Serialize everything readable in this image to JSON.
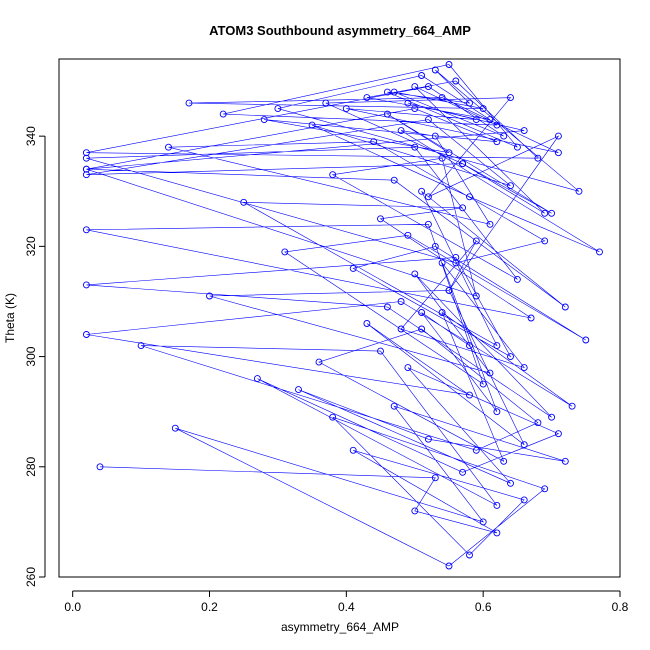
{
  "chart_data": {
    "type": "line",
    "title": "ATOM3 Southbound asymmetry_664_AMP",
    "xlabel": "asymmetry_664_AMP",
    "ylabel": "Theta (K)",
    "xlim": [
      -0.02,
      0.8
    ],
    "ylim": [
      260,
      354
    ],
    "x_ticks": [
      0.0,
      0.2,
      0.4,
      0.6,
      0.8
    ],
    "x_tick_labels": [
      "0.0",
      "0.2",
      "0.4",
      "0.6",
      "0.8"
    ],
    "y_ticks": [
      260,
      280,
      300,
      320,
      340
    ],
    "y_tick_labels": [
      "260",
      "280",
      "300",
      "320",
      "340"
    ],
    "grid": false,
    "legend": "none",
    "series_color": "#0000ff",
    "markers": "open-circle",
    "series": [
      {
        "x": [
          0.04,
          0.53,
          0.5,
          0.62,
          0.41,
          0.66,
          0.58,
          0.38,
          0.69,
          0.55,
          0.15,
          0.6,
          0.47,
          0.72,
          0.52,
          0.33,
          0.64,
          0.49,
          0.71,
          0.57,
          0.27,
          0.62,
          0.45,
          0.1,
          0.59,
          0.68,
          0.51,
          0.36,
          0.63,
          0.54,
          0.73,
          0.48,
          0.02,
          0.58,
          0.43,
          0.66,
          0.55,
          0.2,
          0.61,
          0.5,
          0.7,
          0.46,
          0.02,
          0.56,
          0.64,
          0.41,
          0.53,
          0.75,
          0.49,
          0.31,
          0.6,
          0.52,
          0.02,
          0.67,
          0.45,
          0.57,
          0.25,
          0.62,
          0.51,
          0.72,
          0.47,
          0.02,
          0.59,
          0.54,
          0.38,
          0.65,
          0.5,
          0.02,
          0.56,
          0.69,
          0.44,
          0.14,
          0.61,
          0.53,
          0.48,
          0.77,
          0.58,
          0.35,
          0.64,
          0.52,
          0.02,
          0.57,
          0.7,
          0.46,
          0.55,
          0.28,
          0.62,
          0.5,
          0.02,
          0.66,
          0.49,
          0.59,
          0.4,
          0.71,
          0.54,
          0.17,
          0.6,
          0.47,
          0.63,
          0.52,
          0.02,
          0.68,
          0.56,
          0.43,
          0.61,
          0.51,
          0.3,
          0.74,
          0.53,
          0.58,
          0.46,
          0.65,
          0.55,
          0.22,
          0.62,
          0.5,
          0.69,
          0.57,
          0.37,
          0.64,
          0.52,
          0.71,
          0.55,
          0.59,
          0.48,
          0.66,
          0.54,
          0.62,
          0.51,
          0.58
        ],
        "y": [
          280,
          278,
          272,
          268,
          283,
          274,
          264,
          289,
          276,
          262,
          287,
          270,
          291,
          281,
          285,
          294,
          277,
          298,
          286,
          279,
          296,
          273,
          301,
          302,
          283,
          288,
          305,
          299,
          281,
          308,
          291,
          310,
          304,
          293,
          306,
          284,
          312,
          311,
          297,
          315,
          289,
          309,
          313,
          318,
          300,
          316,
          320,
          303,
          322,
          319,
          295,
          324,
          323,
          307,
          325,
          327,
          328,
          302,
          330,
          309,
          332,
          334,
          311,
          336,
          333,
          314,
          338,
          336,
          317,
          321,
          339,
          338,
          324,
          340,
          341,
          319,
          329,
          342,
          331,
          343,
          333,
          335,
          326,
          344,
          337,
          343,
          339,
          345,
          334,
          341,
          346,
          343,
          345,
          337,
          347,
          346,
          345,
          348,
          340,
          349,
          337,
          336,
          350,
          347,
          343,
          351,
          345,
          330,
          352,
          346,
          348,
          338,
          353,
          344,
          342,
          349,
          326,
          335,
          346,
          347,
          329,
          340,
          312,
          321,
          305,
          298,
          317,
          290,
          308,
          302
        ]
      }
    ]
  }
}
